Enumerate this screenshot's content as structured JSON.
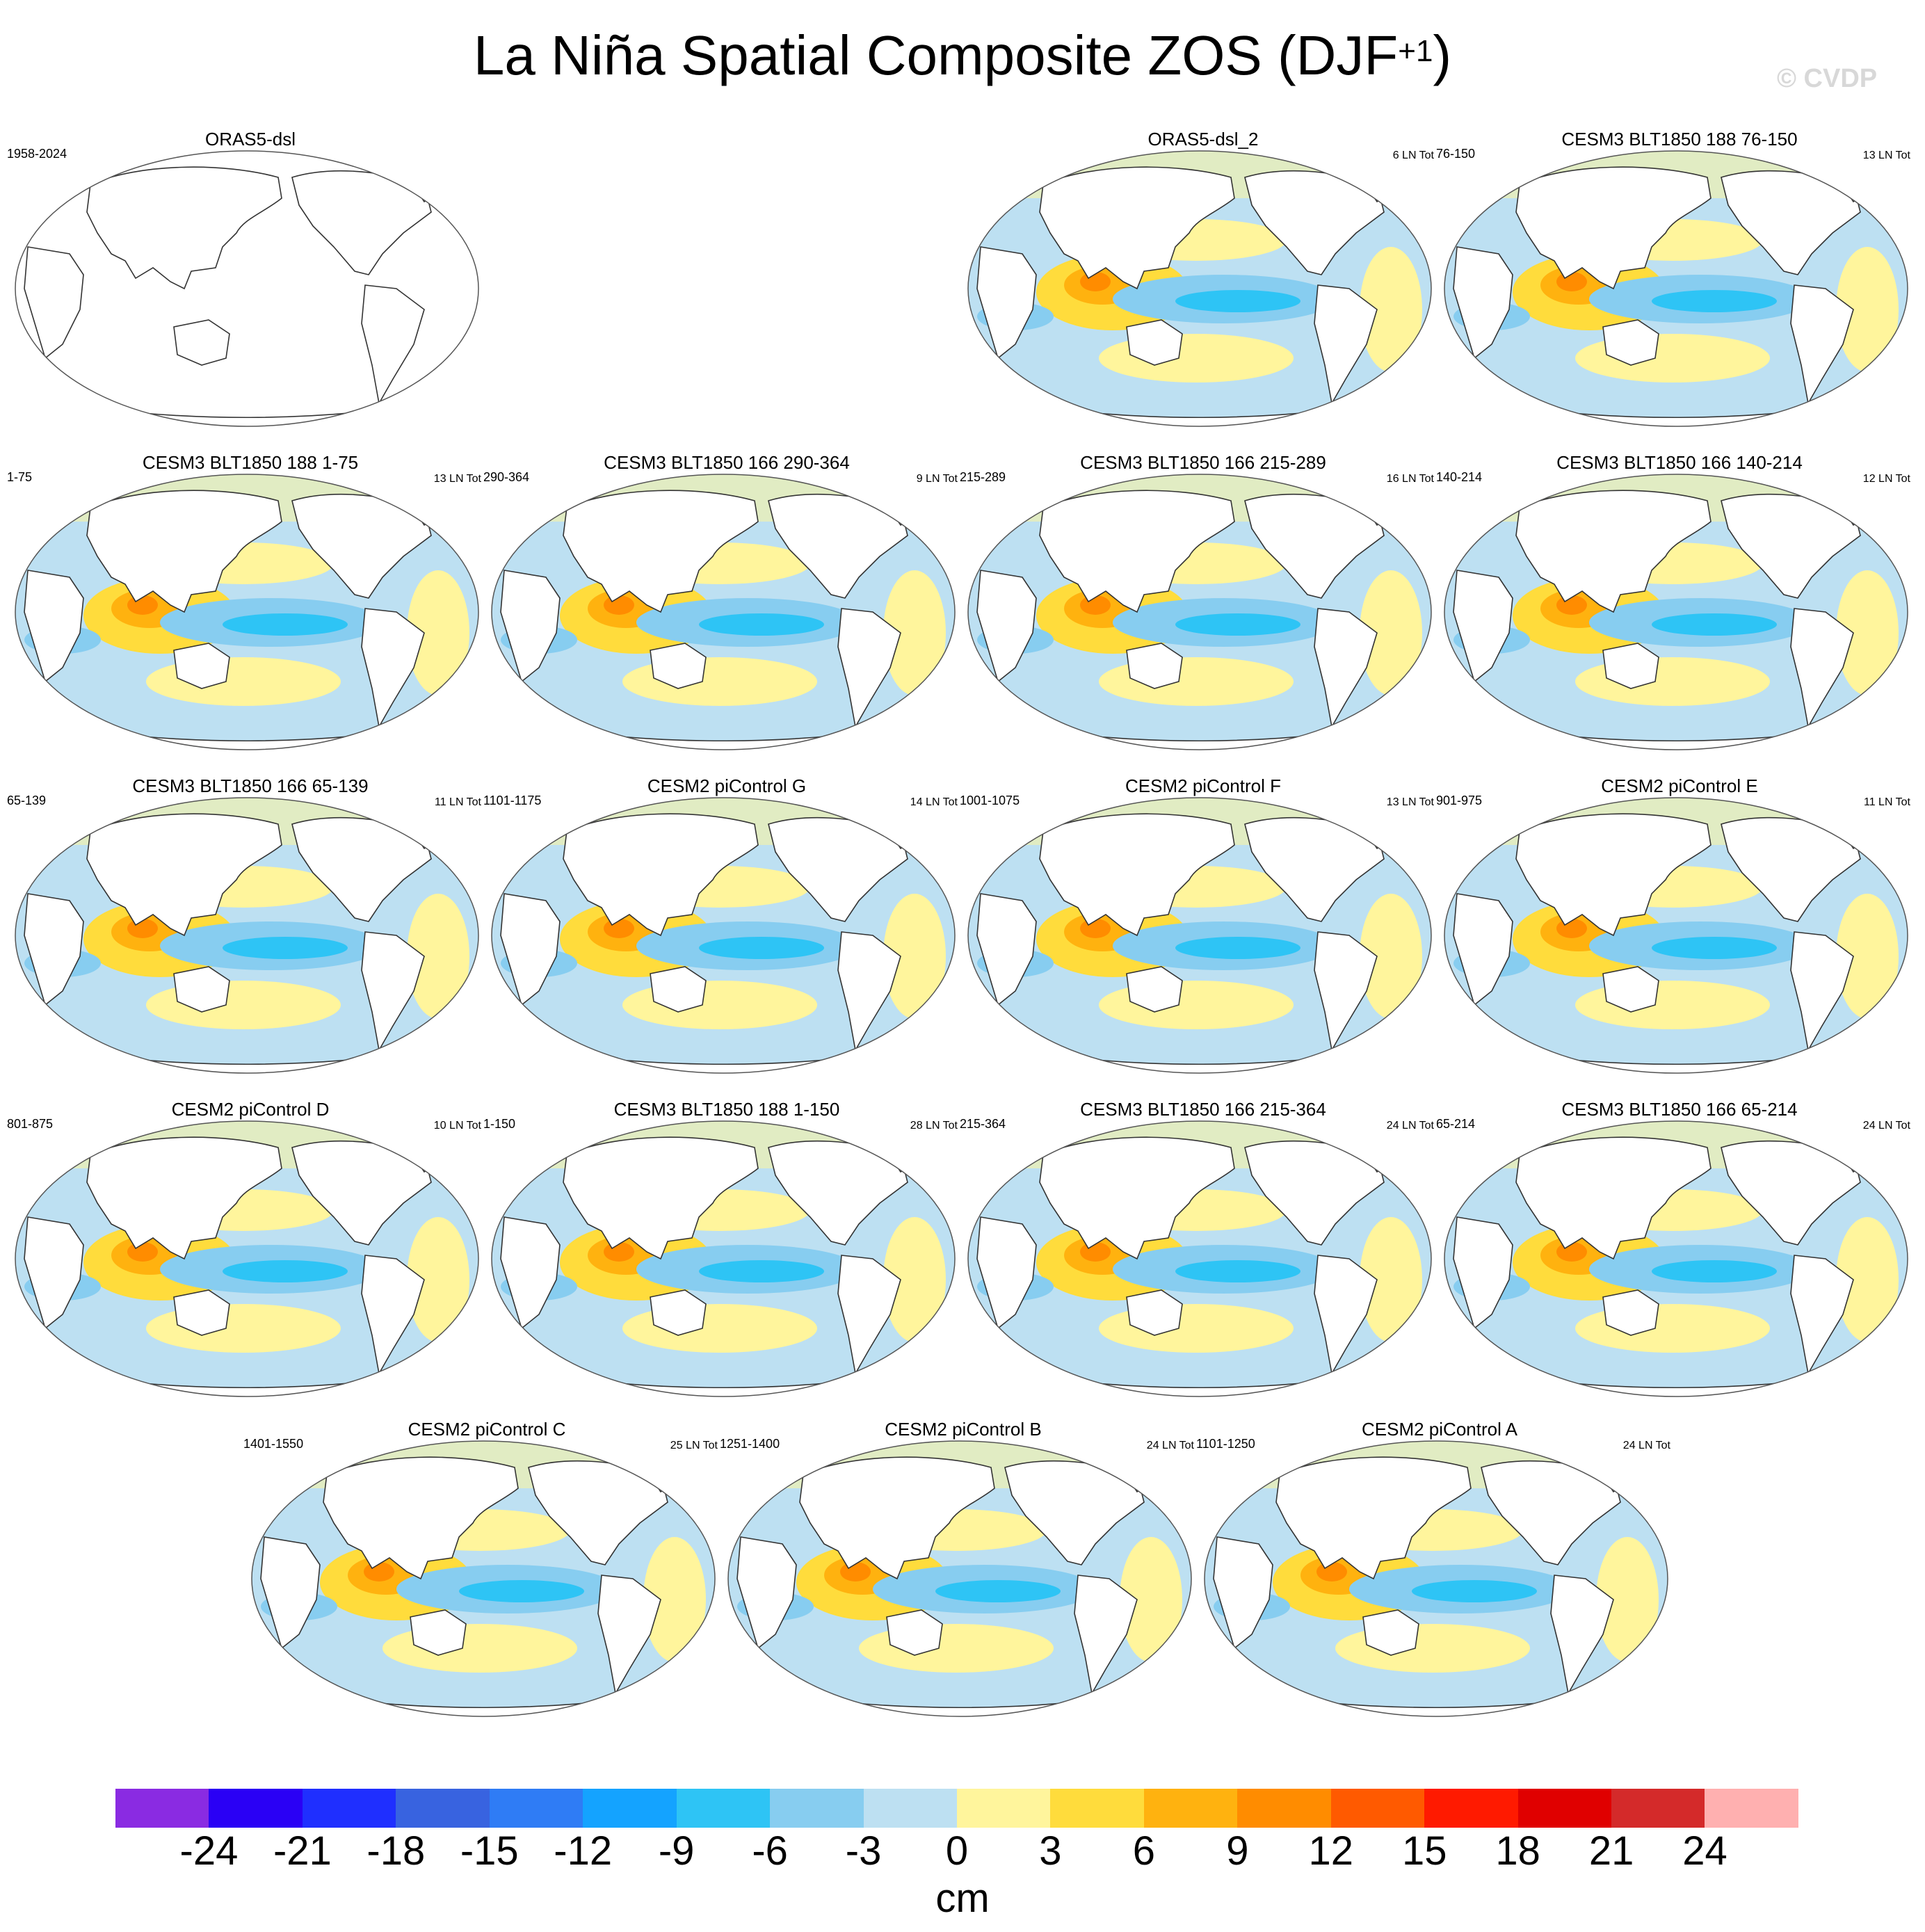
{
  "title": {
    "main": "La Niña Spatial Composite ZOS (DJF",
    "sup": "+1",
    "close": ")"
  },
  "copyright": "© CVDP",
  "panels": [
    {
      "title": "ORAS5-dsl",
      "years": "1958-2024",
      "tot": "",
      "filled": false
    },
    {
      "title": "ORAS5-dsl_2",
      "years": "",
      "tot": "6 LN Tot",
      "filled": true
    },
    {
      "title": "CESM3 BLT1850 188 76-150",
      "years": "76-150",
      "tot": "13 LN Tot",
      "filled": true
    },
    {
      "title": "CESM3 BLT1850 188 1-75",
      "years": "1-75",
      "tot": "13 LN Tot",
      "filled": true
    },
    {
      "title": "CESM3 BLT1850 166 290-364",
      "years": "290-364",
      "tot": "9 LN Tot",
      "filled": true
    },
    {
      "title": "CESM3 BLT1850 166 215-289",
      "years": "215-289",
      "tot": "16 LN Tot",
      "filled": true
    },
    {
      "title": "CESM3 BLT1850 166 140-214",
      "years": "140-214",
      "tot": "12 LN Tot",
      "filled": true
    },
    {
      "title": "CESM3 BLT1850 166 65-139",
      "years": "65-139",
      "tot": "11 LN Tot",
      "filled": true
    },
    {
      "title": "CESM2 piControl G",
      "years": "1101-1175",
      "tot": "14 LN Tot",
      "filled": true
    },
    {
      "title": "CESM2 piControl F",
      "years": "1001-1075",
      "tot": "13 LN Tot",
      "filled": true
    },
    {
      "title": "CESM2 piControl E",
      "years": "901-975",
      "tot": "11 LN Tot",
      "filled": true
    },
    {
      "title": "CESM2 piControl D",
      "years": "801-875",
      "tot": "10 LN Tot",
      "filled": true
    },
    {
      "title": "CESM3 BLT1850 188 1-150",
      "years": "1-150",
      "tot": "28 LN Tot",
      "filled": true
    },
    {
      "title": "CESM3 BLT1850 166 215-364",
      "years": "215-364",
      "tot": "24 LN Tot",
      "filled": true
    },
    {
      "title": "CESM3 BLT1850 166 65-214",
      "years": "65-214",
      "tot": "24 LN Tot",
      "filled": true
    },
    {
      "title": "CESM2 piControl C",
      "years": "1401-1550",
      "tot": "25 LN Tot",
      "filled": true
    },
    {
      "title": "CESM2 piControl B",
      "years": "1251-1400",
      "tot": "24 LN Tot",
      "filled": true
    },
    {
      "title": "CESM2 piControl A",
      "years": "1101-1250",
      "tot": "24 LN Tot",
      "filled": true
    }
  ],
  "colorbar": {
    "colors": [
      "#8a2be2",
      "#2a00f5",
      "#1f2fff",
      "#3863e0",
      "#2f7cf5",
      "#14a3ff",
      "#2ec4f5",
      "#87cdf0",
      "#bde0f2",
      "#fff59c",
      "#ffdc3c",
      "#ffb20f",
      "#ff8c00",
      "#ff5a00",
      "#ff1a00",
      "#e00000",
      "#d42a2a",
      "#ffb0b0"
    ],
    "ticks": [
      "-24",
      "-21",
      "-18",
      "-15",
      "-12",
      "-9",
      "-6",
      "-3",
      "0",
      "3",
      "6",
      "9",
      "12",
      "15",
      "18",
      "21",
      "24"
    ],
    "units": "cm"
  }
}
